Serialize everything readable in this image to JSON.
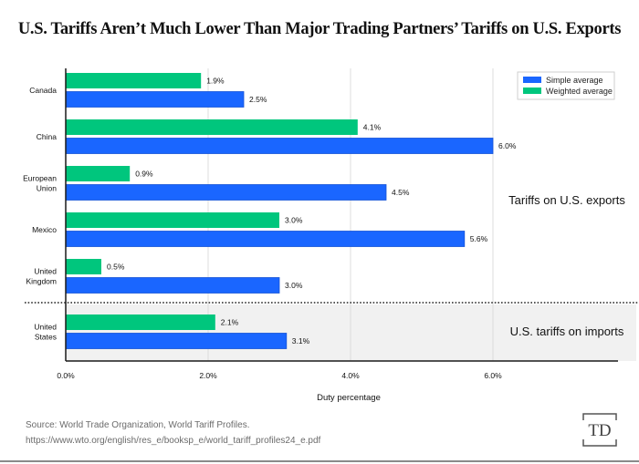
{
  "chart_data": {
    "type": "bar",
    "orientation": "horizontal",
    "title": "U.S. Tariffs Aren't Much Lower Than Major Trading Partners' Tariffs on U.S. Exports",
    "xlabel": "Duty percentage",
    "ylabel": "",
    "xlim": [
      0,
      7.8
    ],
    "xticks": [
      0,
      2,
      4,
      6
    ],
    "xtick_labels": [
      "0.0%",
      "2.0%",
      "4.0%",
      "6.0%"
    ],
    "grid": true,
    "legend_position": "top-right",
    "categories": [
      "Canada",
      "China",
      "European Union",
      "Mexico",
      "United Kingdom",
      "United States"
    ],
    "category_label_lines": [
      [
        "Canada"
      ],
      [
        "China"
      ],
      [
        "European",
        "Union"
      ],
      [
        "Mexico"
      ],
      [
        "United",
        "Kingdom"
      ],
      [
        "United",
        "States"
      ]
    ],
    "series": [
      {
        "name": "Weighted average",
        "color": "#00c67d",
        "values": [
          1.9,
          4.1,
          0.9,
          3.0,
          0.5,
          2.1
        ],
        "labels": [
          "1.9%",
          "4.1%",
          "0.9%",
          "3.0%",
          "0.5%",
          "2.1%"
        ]
      },
      {
        "name": "Simple average",
        "color": "#1a66ff",
        "values": [
          2.5,
          6.0,
          4.5,
          5.6,
          3.0,
          3.1
        ],
        "labels": [
          "2.5%",
          "6.0%",
          "4.5%",
          "5.6%",
          "3.0%",
          "3.1%"
        ]
      }
    ],
    "legend_entries": [
      {
        "name": "Simple average",
        "color": "#1a66ff"
      },
      {
        "name": "Weighted average",
        "color": "#00c67d"
      }
    ],
    "annotations": [
      {
        "text": "Tariffs on U.S. exports",
        "applies_to": [
          "Canada",
          "China",
          "European Union",
          "Mexico",
          "United Kingdom"
        ]
      },
      {
        "text": "U.S. tariffs on imports",
        "applies_to": [
          "United States"
        ]
      }
    ],
    "separator": "dotted line between United Kingdom and United States; United States region shaded gray"
  },
  "header": {
    "title": "U.S. Tariffs Aren’t Much Lower Than Major Trading Partners’ Tariffs on U.S. Exports"
  },
  "footer": {
    "source_line1": "Source: World Trade Organization, World Tariff Profiles.",
    "source_line2": "https://www.wto.org/english/res_e/booksp_e/world_tariff_profiles24_e.pdf",
    "logo_text": "TD"
  },
  "colors": {
    "simple": "#1a66ff",
    "weighted": "#00c67d",
    "shade": "#f1f1f1",
    "grid": "#dcdcdc",
    "axis": "#1a1a1a"
  }
}
